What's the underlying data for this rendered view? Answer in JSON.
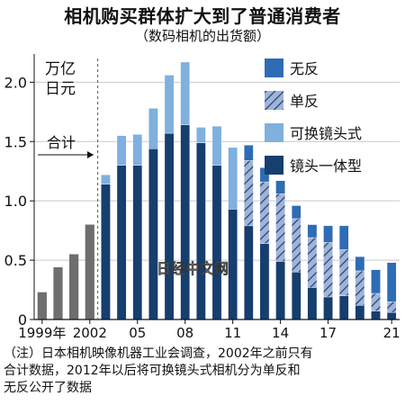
{
  "title": "相机购买群体扩大到了普通消费者",
  "subtitle": "（数码相机的出货额）",
  "note": [
    "（注）日本相机映像机器工业会调查，2002年之前只有",
    "合计数据，2012年以后将可换镜头式相机分为单反和",
    "无反公开了数据"
  ],
  "watermark": "日经中文网",
  "colors": {
    "mirrorless": "#2e6db4",
    "slr": "#9fb4d6",
    "slr_hatch": "#1f3f78",
    "interchangeable": "#7fb0de",
    "fixed_lens": "#163e6e",
    "total": "#6e6e6e"
  },
  "chart_data": {
    "type": "bar",
    "stacked": true,
    "unit_label": [
      "万亿",
      "日元"
    ],
    "x": [
      1999,
      2000,
      2001,
      2002,
      2003,
      2004,
      2005,
      2006,
      2007,
      2008,
      2009,
      2010,
      2011,
      2012,
      2013,
      2014,
      2015,
      2016,
      2017,
      2018,
      2019,
      2020,
      2021
    ],
    "x_tick_labels": [
      {
        "x": 1999,
        "label": "1999年"
      },
      {
        "x": 2002,
        "label": "2002"
      },
      {
        "x": 2005,
        "label": "05"
      },
      {
        "x": 2008,
        "label": "08"
      },
      {
        "x": 2011,
        "label": "11"
      },
      {
        "x": 2014,
        "label": "14"
      },
      {
        "x": 2017,
        "label": "17"
      },
      {
        "x": 2021,
        "label": "21"
      }
    ],
    "ylim": [
      0,
      2.2
    ],
    "yticks": [
      0,
      0.5,
      1.0,
      1.5,
      2.0
    ],
    "ytick_labels": [
      "0",
      "0.5",
      "1.0",
      "1.5",
      "2.0"
    ],
    "total": {
      "name": "合计",
      "values": [
        0.23,
        0.44,
        0.55,
        0.8,
        null,
        null,
        null,
        null,
        null,
        null,
        null,
        null,
        null,
        null,
        null,
        null,
        null,
        null,
        null,
        null,
        null,
        null,
        null
      ]
    },
    "series": [
      {
        "name": "镜头一体型",
        "key": "fixed_lens",
        "pattern": "solid",
        "values": [
          null,
          null,
          null,
          null,
          1.14,
          1.3,
          1.3,
          1.44,
          1.57,
          1.64,
          1.49,
          1.3,
          0.93,
          0.79,
          0.64,
          0.49,
          0.4,
          0.27,
          0.19,
          0.2,
          0.12,
          0.07,
          0.06
        ]
      },
      {
        "name": "可换镜头式",
        "key": "interchangeable",
        "pattern": "solid",
        "values": [
          null,
          null,
          null,
          null,
          0.08,
          0.25,
          0.26,
          0.34,
          0.49,
          0.53,
          0.13,
          0.33,
          0.52,
          null,
          null,
          null,
          null,
          null,
          null,
          null,
          null,
          null,
          null
        ]
      },
      {
        "name": "单反",
        "key": "slr",
        "pattern": "hatch",
        "values": [
          null,
          null,
          null,
          null,
          null,
          null,
          null,
          null,
          null,
          null,
          null,
          null,
          null,
          0.55,
          0.52,
          0.57,
          0.45,
          0.42,
          0.46,
          0.39,
          0.29,
          0.15,
          0.09
        ]
      },
      {
        "name": "无反",
        "key": "mirrorless",
        "pattern": "solid",
        "values": [
          null,
          null,
          null,
          null,
          null,
          null,
          null,
          null,
          null,
          null,
          null,
          null,
          null,
          0.13,
          0.12,
          0.11,
          0.11,
          0.11,
          0.14,
          0.2,
          0.12,
          0.2,
          0.33
        ]
      }
    ],
    "legend_order": [
      "无反",
      "单反",
      "可换镜头式",
      "镜头一体型"
    ],
    "legend_position": "top-right",
    "annotation": {
      "text": "合计",
      "divider_after": 2002
    }
  }
}
